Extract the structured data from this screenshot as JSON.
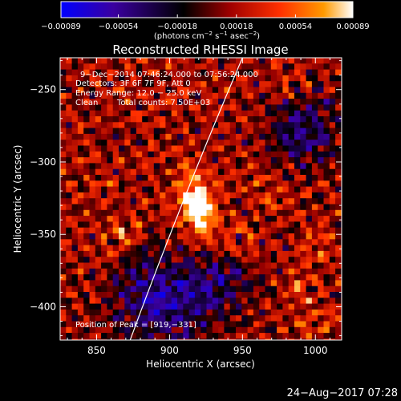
{
  "chart_data": {
    "type": "heatmap",
    "title": "Reconstructed RHESSI Image",
    "xlabel": "Heliocentric X (arcsec)",
    "ylabel": "Heliocentric Y (arcsec)",
    "xlim": [
      825,
      1018
    ],
    "ylim": [
      -423,
      -228
    ],
    "x_ticks": [
      850,
      900,
      950,
      1000
    ],
    "x_tick_labels": [
      "850",
      "900",
      "950",
      "1000"
    ],
    "y_ticks": [
      -250,
      -300,
      -350,
      -400
    ],
    "y_tick_labels": [
      "−250",
      "−300",
      "−350",
      "−400"
    ],
    "colorbar": {
      "ticks": [
        -0.00089,
        -0.00054,
        -0.00018,
        0.00018,
        0.00054,
        0.00089
      ],
      "tick_labels": [
        "−0.00089",
        "−0.00054",
        "−0.00018",
        "0.00018",
        "0.00054",
        "0.00089"
      ],
      "range": [
        -0.00089,
        0.00089
      ],
      "colors": [
        "#0000ff",
        "#400080",
        "#000000",
        "#b00000",
        "#ff3000",
        "#ff9000",
        "#ffffff"
      ]
    },
    "annotations": [
      "9−Dec−2014 07:46:24.000 to 07:56:24.000",
      "Detectors: 3F 6F 7F 9F, Att 0",
      "Energy Range: 12.0 − 25.0 keV",
      "Clean",
      "Total counts: 7.50E+03"
    ],
    "peak_label": "Position of Peak = [919,−331]",
    "peak": [
      919,
      -331
    ],
    "limb_color": "#ffffff"
  },
  "footer": {
    "date": "24−Aug−2017 07:28"
  }
}
